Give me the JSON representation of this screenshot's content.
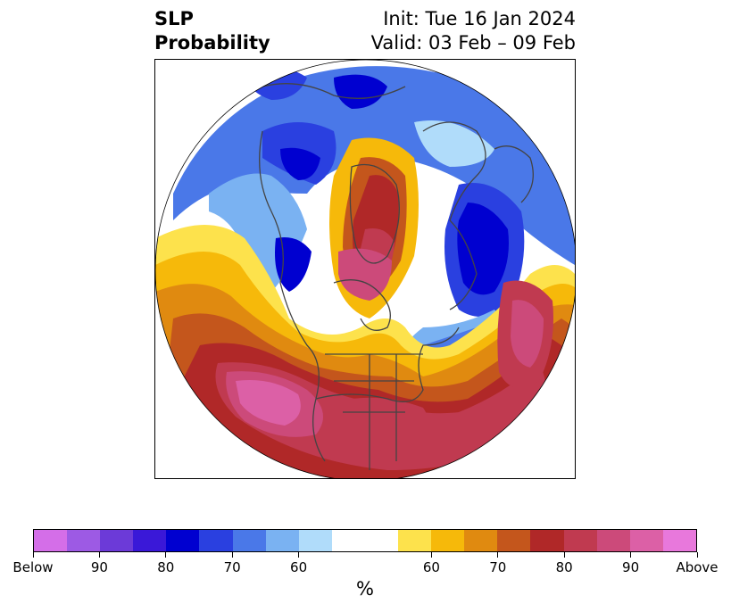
{
  "title": {
    "left_line1": "SLP",
    "left_line2": "Probability",
    "right_line1": "Init: Tue 16 Jan 2024",
    "right_line2": "Valid: 03 Feb – 09 Feb"
  },
  "map": {
    "projection": "polar-stereographic (north pole)",
    "region": "Northern Hemisphere – North America, Arctic, North Atlantic, Europe",
    "features": [
      "coastlines",
      "country borders",
      "US state borders",
      "Canadian province borders"
    ]
  },
  "colorbar": {
    "units": "%",
    "labels": [
      "Below",
      "90",
      "80",
      "70",
      "60",
      "60",
      "70",
      "80",
      "90",
      "Above"
    ],
    "below_colors": [
      "#d46ee8",
      "#9d5ae4",
      "#6c3ad8",
      "#3a18d8",
      "#0000d0",
      "#2a40e0",
      "#4a78e8",
      "#7ab2f2",
      "#b0dcfa"
    ],
    "neutral_color": "#ffffff",
    "above_colors": [
      "#fde24c",
      "#f6b90a",
      "#e08a10",
      "#c4561c",
      "#b02828",
      "#c03a50",
      "#cc4a7a",
      "#dc60a6",
      "#e878dc"
    ]
  }
}
